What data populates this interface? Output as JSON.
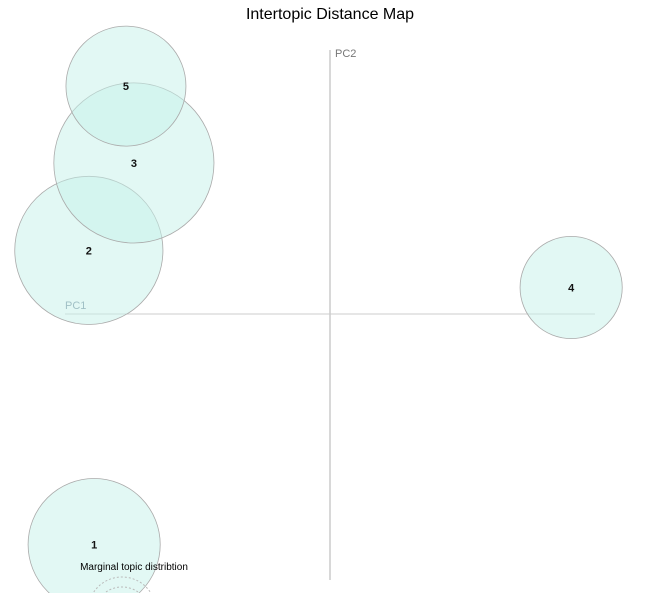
{
  "chart_data": {
    "type": "scatter",
    "title": "Intertopic Distance Map",
    "xlabel": "PC1",
    "ylabel": "PC2",
    "xlim": [
      -1,
      1
    ],
    "ylim": [
      -1,
      1
    ],
    "grid": false,
    "bubble_color": "#c6f2ea",
    "legend_text": "Marginal topic distribtion",
    "topics": [
      {
        "label": "1",
        "pc1": -0.89,
        "pc2": -0.87,
        "marginal_pct": 19.4
      },
      {
        "label": "2",
        "pc1": -0.91,
        "pc2": 0.24,
        "marginal_pct": 24.4
      },
      {
        "label": "3",
        "pc1": -0.74,
        "pc2": 0.57,
        "marginal_pct": 28.5
      },
      {
        "label": "4",
        "pc1": 0.91,
        "pc2": 0.1,
        "marginal_pct": 11.6
      },
      {
        "label": "5",
        "pc1": -0.77,
        "pc2": 0.86,
        "marginal_pct": 16.0
      }
    ]
  }
}
